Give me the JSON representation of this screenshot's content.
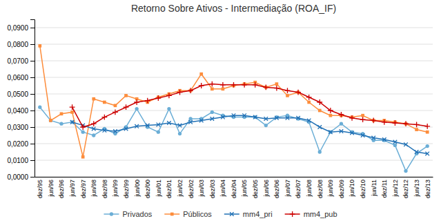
{
  "chart_data": {
    "type": "line",
    "title": "Retorno Sobre Ativos - Intermediação (ROA_IF)",
    "categories": [
      "dez/95",
      "jun/96",
      "dez/96",
      "jun/97",
      "dez/97",
      "jun/98",
      "dez/98",
      "jun/99",
      "dez/99",
      "jun/00",
      "dez/00",
      "jun/01",
      "dez/01",
      "jun/02",
      "dez/02",
      "jun/03",
      "dez/03",
      "jun/04",
      "dez/04",
      "jun/05",
      "dez/05",
      "jun/06",
      "dez/06",
      "jun/07",
      "dez/07",
      "jun/08",
      "dez/08",
      "jun/09",
      "dez/09",
      "jun/10",
      "dez/10",
      "jun/11",
      "dez/11",
      "jun/12",
      "dez/12",
      "jun/13",
      "dez/13"
    ],
    "series": [
      {
        "name": "Privados",
        "color": "#6BAED6",
        "marker": "circle",
        "values": [
          0.042,
          0.034,
          0.032,
          0.033,
          0.027,
          0.025,
          0.029,
          0.026,
          0.03,
          0.041,
          0.03,
          0.027,
          0.041,
          0.026,
          0.035,
          0.035,
          0.039,
          0.037,
          0.036,
          0.036,
          0.036,
          0.031,
          0.036,
          0.037,
          0.035,
          0.033,
          0.015,
          0.027,
          0.032,
          0.027,
          0.026,
          0.022,
          0.022,
          0.019,
          0.0035,
          0.014,
          0.0185
        ]
      },
      {
        "name": "Públicos",
        "color": "#FD8D3C",
        "marker": "square",
        "values": [
          0.079,
          0.034,
          0.038,
          0.039,
          0.012,
          0.047,
          0.045,
          0.043,
          0.049,
          0.047,
          0.045,
          0.048,
          0.05,
          0.052,
          0.052,
          0.062,
          0.053,
          0.053,
          0.055,
          0.056,
          0.057,
          0.054,
          0.056,
          0.049,
          0.051,
          0.045,
          0.04,
          0.037,
          0.037,
          0.036,
          0.037,
          0.034,
          0.034,
          0.033,
          0.032,
          0.0285,
          0.027
        ]
      },
      {
        "name": "mm4_pri",
        "color": "#2171B5",
        "marker": "x",
        "values": [
          null,
          null,
          null,
          0.033,
          0.031,
          0.029,
          0.028,
          0.0275,
          0.029,
          0.0305,
          0.031,
          0.0315,
          0.0325,
          0.031,
          0.033,
          0.034,
          0.035,
          0.036,
          0.037,
          0.037,
          0.036,
          0.035,
          0.0355,
          0.0355,
          0.0355,
          0.034,
          0.03,
          0.027,
          0.0275,
          0.0265,
          0.025,
          0.0235,
          0.0225,
          0.021,
          0.0195,
          0.015,
          0.014
        ]
      },
      {
        "name": "mm4_pub",
        "color": "#CC0000",
        "marker": "plus",
        "values": [
          null,
          null,
          null,
          0.042,
          0.03,
          0.032,
          0.036,
          0.039,
          0.042,
          0.045,
          0.046,
          0.0475,
          0.049,
          0.051,
          0.052,
          0.055,
          0.056,
          0.0555,
          0.0555,
          0.0555,
          0.0555,
          0.054,
          0.0535,
          0.052,
          0.051,
          0.048,
          0.045,
          0.04,
          0.0375,
          0.0355,
          0.0345,
          0.034,
          0.033,
          0.0325,
          0.032,
          0.0315,
          0.0305
        ]
      }
    ],
    "ylim": [
      0.0,
      0.095
    ],
    "yticks": [
      {
        "value": 0.0,
        "label": "0,0000"
      },
      {
        "value": 0.01,
        "label": "0,0100"
      },
      {
        "value": 0.02,
        "label": "0,0200"
      },
      {
        "value": 0.03,
        "label": "0,0300"
      },
      {
        "value": 0.04,
        "label": "0,0400"
      },
      {
        "value": 0.05,
        "label": "0,0500"
      },
      {
        "value": 0.06,
        "label": "0,0600"
      },
      {
        "value": 0.07,
        "label": "0,0700"
      },
      {
        "value": 0.08,
        "label": "0,0800"
      },
      {
        "value": 0.09,
        "label": "0,0900"
      }
    ],
    "grid": true,
    "legend": "bottom"
  }
}
